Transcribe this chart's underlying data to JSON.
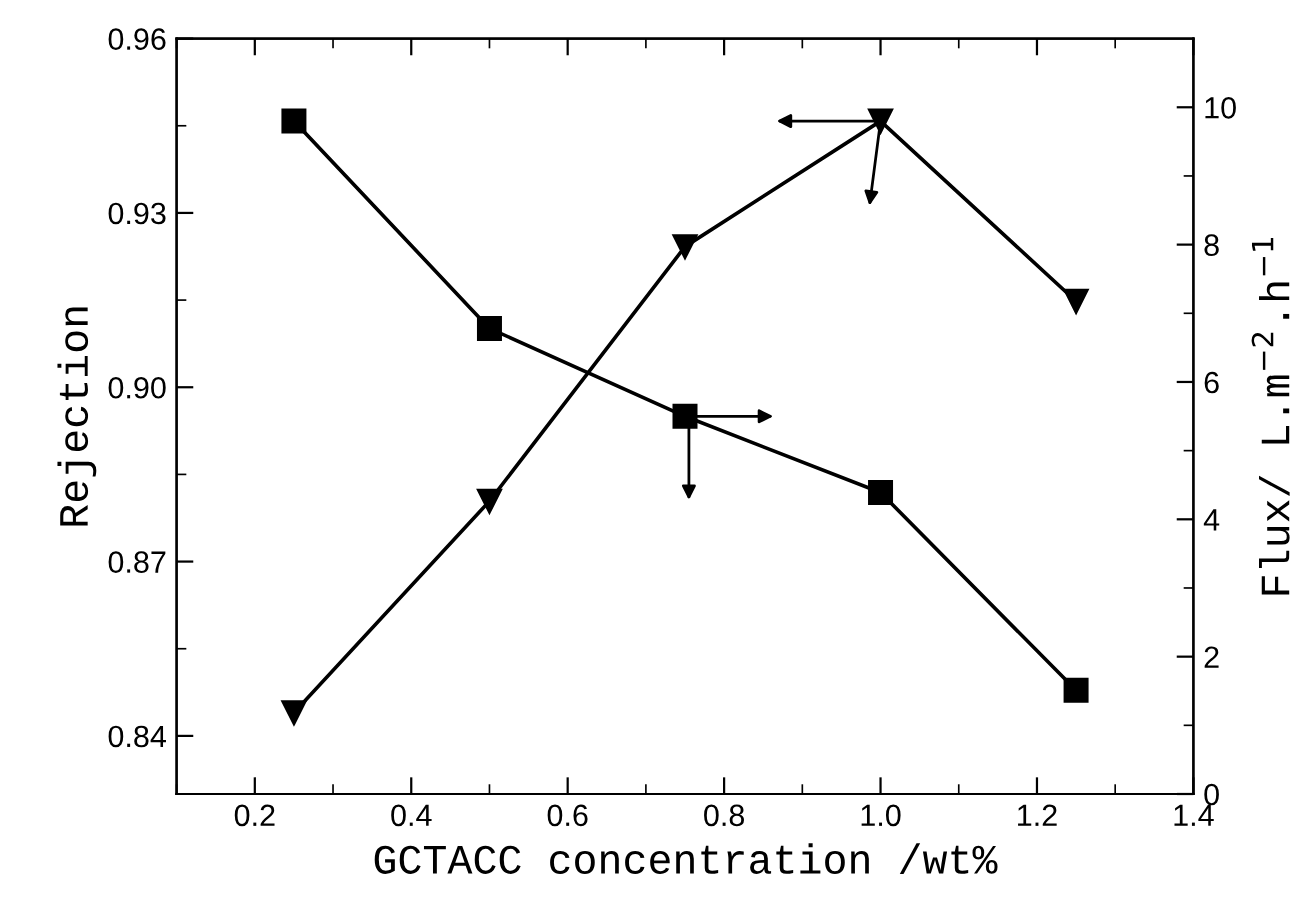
{
  "chart_data": {
    "type": "line",
    "xlabel": "GCTACC concentration /wt%",
    "ylabel": "Rejection",
    "y2label": "Flux/ L.m$^{−2}$.h$^{−1}$",
    "series": [
      {
        "axis": "y2",
        "color": "#000000",
        "marker": "square",
        "x": [
          0.25,
          0.5,
          0.75,
          1.0,
          1.25
        ],
        "values": [
          9.8,
          6.78,
          5.5,
          4.39,
          1.51
        ]
      },
      {
        "color": "#000000",
        "marker": "triangle",
        "x": [
          0.25,
          0.5,
          0.75,
          1.0,
          1.25
        ],
        "values": [
          0.844,
          0.8804,
          0.9242,
          0.9458,
          0.9148
        ]
      }
    ],
    "xlim": [
      0.1,
      1.4
    ],
    "xticks": [
      {
        "value": 0.1,
        "label": null
      },
      0.2,
      {
        "value": 0.3,
        "label": null
      },
      0.4,
      {
        "value": 0.5,
        "label": null
      },
      0.6,
      {
        "value": 0.7,
        "label": null
      },
      0.8,
      {
        "value": 0.9,
        "label": null
      },
      {
        "value": 1.0,
        "label": "1.0"
      },
      {
        "value": 1.1,
        "label": null
      },
      1.2,
      {
        "value": 1.3,
        "label": null
      },
      1.4
    ],
    "ylim": [
      0.83,
      0.96
    ],
    "yticks": [
      {
        "value": 0.84,
        "label": "0.84"
      },
      {
        "value": 0.855,
        "label": null
      },
      {
        "value": 0.87,
        "label": "0.87"
      },
      {
        "value": 0.885,
        "label": null
      },
      {
        "value": 0.9,
        "label": "0.90"
      },
      {
        "value": 0.915,
        "label": null
      },
      {
        "value": 0.93,
        "label": "0.93"
      },
      {
        "value": 0.945,
        "label": null
      },
      {
        "value": 0.96,
        "label": "0.96"
      }
    ],
    "y2lim": [
      0,
      11
    ],
    "y2ticks": [
      0,
      {
        "value": 1,
        "label": null
      },
      2,
      {
        "value": 3,
        "label": null
      },
      4,
      {
        "value": 5,
        "label": null
      },
      6,
      {
        "value": 7,
        "label": null
      },
      8,
      {
        "value": 9,
        "label": null
      },
      10
    ],
    "grid": false,
    "legend": false,
    "line_style": "solid"
  }
}
